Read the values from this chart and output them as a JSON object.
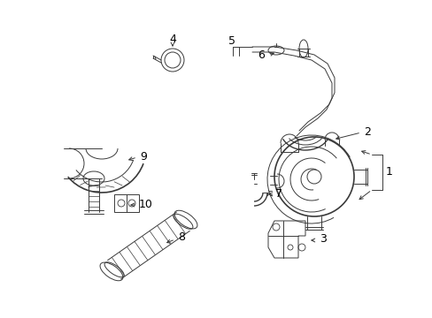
{
  "bg_color": "#ffffff",
  "line_color": "#3a3a3a",
  "text_color": "#000000",
  "fig_width": 4.89,
  "fig_height": 3.6,
  "dpi": 100
}
